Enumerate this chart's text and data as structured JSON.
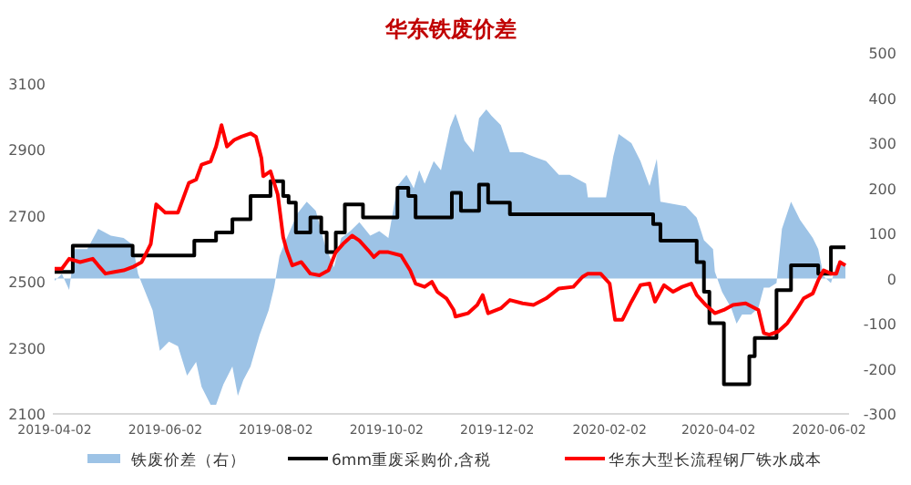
{
  "chart_data": {
    "type": "line",
    "title": "华东铁废价差",
    "xlim": [
      "2019-04-01",
      "2020-06-13"
    ],
    "xticks": [
      "2019-04-02",
      "2019-06-02",
      "2019-08-02",
      "2019-10-02",
      "2019-12-02",
      "2020-02-02",
      "2020-04-02",
      "2020-06-02"
    ],
    "ylim": [
      2100,
      3100
    ],
    "yticks": [
      2100,
      2300,
      2500,
      2700,
      2900,
      3100
    ],
    "y2lim": [
      -300,
      500
    ],
    "y2ticks": [
      -300,
      -200,
      -100,
      0,
      100,
      200,
      300,
      400,
      500
    ],
    "legend": "bottom",
    "grid": false,
    "series": [
      {
        "name": "铁废价差（右）",
        "type": "area",
        "axis": "y2",
        "color": "#9dc3e6",
        "x": [
          "2019-04-02",
          "2019-04-06",
          "2019-04-10",
          "2019-04-13",
          "2019-04-20",
          "2019-04-26",
          "2019-05-03",
          "2019-05-10",
          "2019-05-15",
          "2019-05-18",
          "2019-05-20",
          "2019-05-26",
          "2019-05-30",
          "2019-06-04",
          "2019-06-09",
          "2019-06-14",
          "2019-06-19",
          "2019-06-22",
          "2019-06-27",
          "2019-06-30",
          "2019-07-04",
          "2019-07-09",
          "2019-07-12",
          "2019-07-15",
          "2019-07-19",
          "2019-07-24",
          "2019-07-29",
          "2019-08-01",
          "2019-08-04",
          "2019-08-08",
          "2019-08-14",
          "2019-08-19",
          "2019-08-24",
          "2019-08-29",
          "2019-09-03",
          "2019-09-07",
          "2019-09-12",
          "2019-09-17",
          "2019-09-23",
          "2019-09-28",
          "2019-10-03",
          "2019-10-08",
          "2019-10-13",
          "2019-10-17",
          "2019-10-20",
          "2019-10-23",
          "2019-10-28",
          "2019-11-01",
          "2019-11-06",
          "2019-11-09",
          "2019-11-14",
          "2019-11-19",
          "2019-11-22",
          "2019-11-26",
          "2019-11-29",
          "2019-12-04",
          "2019-12-09",
          "2019-12-16",
          "2019-12-22",
          "2019-12-29",
          "2020-01-05",
          "2020-01-11",
          "2020-01-20",
          "2020-01-21",
          "2020-01-31",
          "2020-02-04",
          "2020-02-07",
          "2020-02-14",
          "2020-02-19",
          "2020-02-24",
          "2020-02-28",
          "2020-03-01",
          "2020-03-08",
          "2020-03-15",
          "2020-03-21",
          "2020-03-25",
          "2020-03-30",
          "2020-03-31",
          "2020-04-04",
          "2020-04-09",
          "2020-04-12",
          "2020-04-15",
          "2020-04-20",
          "2020-04-24",
          "2020-04-27",
          "2020-04-30",
          "2020-05-04",
          "2020-05-07",
          "2020-05-12",
          "2020-05-17",
          "2020-05-24",
          "2020-05-27",
          "2020-05-30",
          "2020-06-03",
          "2020-06-06",
          "2020-06-11"
        ],
        "values": [
          -5,
          10,
          -25,
          65,
          65,
          110,
          95,
          90,
          75,
          10,
          -10,
          -70,
          -160,
          -140,
          -150,
          -215,
          -185,
          -240,
          -280,
          -280,
          -235,
          -195,
          -260,
          -225,
          -195,
          -125,
          -70,
          -20,
          50,
          90,
          145,
          170,
          150,
          75,
          25,
          90,
          105,
          125,
          95,
          105,
          90,
          205,
          230,
          200,
          240,
          210,
          260,
          240,
          335,
          365,
          305,
          280,
          355,
          375,
          360,
          340,
          280,
          280,
          270,
          260,
          230,
          230,
          210,
          180,
          180,
          270,
          320,
          300,
          260,
          205,
          265,
          170,
          165,
          160,
          135,
          85,
          65,
          15,
          -30,
          -65,
          -100,
          -80,
          -80,
          -65,
          -20,
          -20,
          -10,
          110,
          170,
          130,
          90,
          65,
          5,
          -10,
          30,
          35
        ]
      },
      {
        "name": "6mm重废采购价,含税",
        "type": "step",
        "color": "#000000",
        "x": [
          "2019-04-02",
          "2019-04-12",
          "2019-05-15",
          "2019-06-18",
          "2019-06-30",
          "2019-07-09",
          "2019-07-19",
          "2019-07-30",
          "2019-08-06",
          "2019-08-09",
          "2019-08-13",
          "2019-08-21",
          "2019-08-27",
          "2019-08-30",
          "2019-09-04",
          "2019-09-09",
          "2019-09-19",
          "2019-10-08",
          "2019-10-14",
          "2019-10-18",
          "2019-11-07",
          "2019-11-12",
          "2019-11-22",
          "2019-11-27",
          "2019-12-09",
          "2020-02-26",
          "2020-03-01",
          "2020-03-21",
          "2020-03-25",
          "2020-03-28",
          "2020-04-05",
          "2020-04-19",
          "2020-04-22",
          "2020-05-04",
          "2020-05-12",
          "2020-05-27",
          "2020-06-03",
          "2020-06-11"
        ],
        "values": [
          2530,
          2610,
          2580,
          2625,
          2650,
          2690,
          2760,
          2805,
          2760,
          2740,
          2650,
          2695,
          2650,
          2590,
          2650,
          2735,
          2695,
          2785,
          2760,
          2695,
          2770,
          2715,
          2795,
          2740,
          2705,
          2675,
          2625,
          2560,
          2470,
          2375,
          2190,
          2275,
          2330,
          2475,
          2550,
          2525,
          2605,
          2605
        ]
      },
      {
        "name": "华东大型长流程钢厂铁水成本",
        "type": "line",
        "color": "#ff0000",
        "x": [
          "2019-04-02",
          "2019-04-06",
          "2019-04-10",
          "2019-04-16",
          "2019-04-23",
          "2019-04-26",
          "2019-04-30",
          "2019-05-05",
          "2019-05-10",
          "2019-05-15",
          "2019-05-20",
          "2019-05-25",
          "2019-05-28",
          "2019-06-02",
          "2019-06-09",
          "2019-06-12",
          "2019-06-15",
          "2019-06-19",
          "2019-06-22",
          "2019-06-27",
          "2019-06-30",
          "2019-07-03",
          "2019-07-06",
          "2019-07-10",
          "2019-07-14",
          "2019-07-19",
          "2019-07-22",
          "2019-07-25",
          "2019-07-26",
          "2019-07-30",
          "2019-08-03",
          "2019-08-06",
          "2019-08-08",
          "2019-08-11",
          "2019-08-16",
          "2019-08-21",
          "2019-08-26",
          "2019-08-31",
          "2019-09-04",
          "2019-09-08",
          "2019-09-13",
          "2019-09-17",
          "2019-09-22",
          "2019-09-25",
          "2019-09-28",
          "2019-10-03",
          "2019-10-10",
          "2019-10-15",
          "2019-10-18",
          "2019-10-23",
          "2019-10-27",
          "2019-10-30",
          "2019-11-04",
          "2019-11-08",
          "2019-11-09",
          "2019-11-16",
          "2019-11-21",
          "2019-11-24",
          "2019-11-27",
          "2019-12-04",
          "2019-12-09",
          "2019-12-16",
          "2019-12-22",
          "2019-12-29",
          "2020-01-05",
          "2020-01-13",
          "2020-01-18",
          "2020-01-21",
          "2020-01-28",
          "2020-02-02",
          "2020-02-05",
          "2020-02-09",
          "2020-02-14",
          "2020-02-19",
          "2020-02-24",
          "2020-02-27",
          "2020-03-03",
          "2020-03-08",
          "2020-03-13",
          "2020-03-18",
          "2020-03-21",
          "2020-03-26",
          "2020-03-31",
          "2020-04-05",
          "2020-04-10",
          "2020-04-17",
          "2020-04-24",
          "2020-04-27",
          "2020-04-30",
          "2020-05-05",
          "2020-05-10",
          "2020-05-15",
          "2020-05-19",
          "2020-05-24",
          "2020-05-27",
          "2020-05-30",
          "2020-06-03",
          "2020-06-06",
          "2020-06-08",
          "2020-06-11"
        ],
        "values": [
          2540,
          2540,
          2570,
          2560,
          2570,
          2550,
          2525,
          2530,
          2535,
          2545,
          2560,
          2615,
          2735,
          2710,
          2710,
          2755,
          2800,
          2810,
          2855,
          2865,
          2910,
          2975,
          2910,
          2930,
          2940,
          2950,
          2940,
          2875,
          2820,
          2835,
          2765,
          2635,
          2595,
          2550,
          2560,
          2525,
          2520,
          2535,
          2590,
          2615,
          2640,
          2625,
          2595,
          2575,
          2590,
          2590,
          2580,
          2535,
          2495,
          2485,
          2500,
          2470,
          2450,
          2415,
          2395,
          2405,
          2430,
          2460,
          2405,
          2420,
          2445,
          2435,
          2430,
          2450,
          2480,
          2485,
          2515,
          2525,
          2525,
          2495,
          2385,
          2385,
          2440,
          2490,
          2495,
          2440,
          2490,
          2470,
          2485,
          2495,
          2460,
          2430,
          2405,
          2415,
          2430,
          2435,
          2415,
          2345,
          2340,
          2350,
          2375,
          2415,
          2450,
          2465,
          2505,
          2535,
          2525,
          2525,
          2560,
          2550
        ]
      }
    ]
  }
}
